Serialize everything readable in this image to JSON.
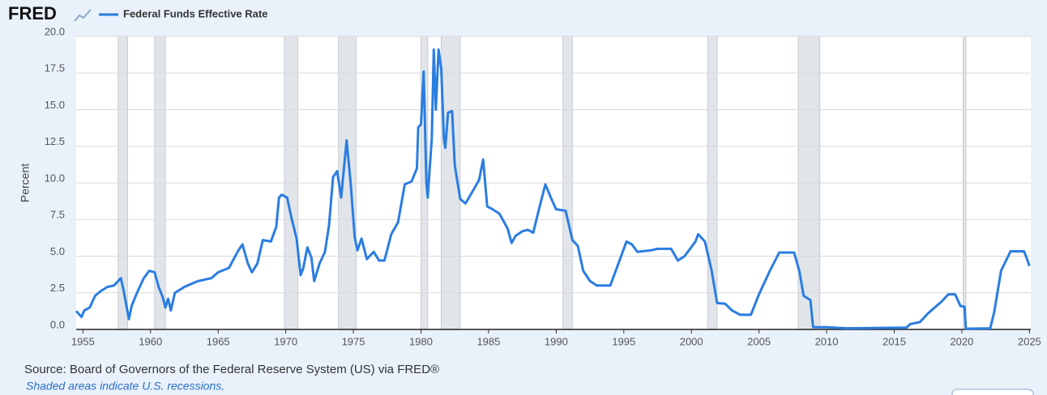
{
  "chart_data": {
    "type": "line",
    "logo": "FRED",
    "ylabel": "Percent",
    "source": "Source: Board of Governors of the Federal Reserve System (US) via FRED®",
    "note": "Shaded areas indicate U.S. recessions.",
    "xlim": [
      1954.5,
      2025.1
    ],
    "xticks": [
      1955,
      1960,
      1965,
      1970,
      1975,
      1980,
      1985,
      1990,
      1995,
      2000,
      2005,
      2010,
      2015,
      2020,
      2025
    ],
    "ylim": [
      0,
      20
    ],
    "yticks": [
      {
        "value": 0,
        "label": "0.0"
      },
      2.5,
      {
        "value": 5,
        "label": "5.0"
      },
      7.5,
      {
        "value": 10,
        "label": "10.0"
      },
      12.5,
      {
        "value": 15,
        "label": "15.0"
      },
      17.5,
      {
        "value": 20,
        "label": "20.0"
      }
    ],
    "grid": true,
    "recessions": [
      [
        1957.6,
        1958.3
      ],
      [
        1960.3,
        1961.1
      ],
      [
        1969.9,
        1970.9
      ],
      [
        1973.9,
        1975.2
      ],
      [
        1980.0,
        1980.5
      ],
      [
        1981.5,
        1982.9
      ],
      [
        1990.5,
        1991.2
      ],
      [
        2001.2,
        2001.9
      ],
      [
        2007.9,
        2009.5
      ],
      [
        2020.1,
        2020.3
      ]
    ],
    "x": [
      1954.5,
      1954.9,
      1955.1,
      1955.5,
      1955.9,
      1956.3,
      1956.8,
      1957.3,
      1957.8,
      1958.0,
      1958.3,
      1958.4,
      1958.6,
      1959.0,
      1959.5,
      1959.9,
      1960.3,
      1960.6,
      1960.9,
      1961.1,
      1961.3,
      1961.5,
      1961.8,
      1962.5,
      1963.5,
      1964.5,
      1965.0,
      1965.8,
      1966.5,
      1966.8,
      1967.2,
      1967.5,
      1967.9,
      1968.3,
      1968.9,
      1969.3,
      1969.5,
      1969.7,
      1970.1,
      1970.4,
      1970.8,
      1971.1,
      1971.3,
      1971.6,
      1971.9,
      1972.1,
      1972.5,
      1972.9,
      1973.2,
      1973.5,
      1973.8,
      1974.1,
      1974.5,
      1974.8,
      1975.1,
      1975.3,
      1975.6,
      1976.0,
      1976.5,
      1976.9,
      1977.3,
      1977.8,
      1978.3,
      1978.8,
      1979.3,
      1979.7,
      1979.8,
      1980.0,
      1980.2,
      1980.4,
      1980.5,
      1980.8,
      1980.95,
      1981.1,
      1981.3,
      1981.5,
      1981.7,
      1981.8,
      1982.0,
      1982.3,
      1982.5,
      1982.9,
      1983.3,
      1983.8,
      1984.3,
      1984.6,
      1984.9,
      1985.3,
      1985.8,
      1986.4,
      1986.7,
      1987.0,
      1987.5,
      1987.9,
      1988.3,
      1988.7,
      1989.2,
      1989.6,
      1990.0,
      1990.7,
      1991.2,
      1991.6,
      1992.0,
      1992.5,
      1993.0,
      1994.0,
      1994.6,
      1995.2,
      1995.6,
      1996.0,
      1997.0,
      1997.5,
      1998.5,
      1999.0,
      1999.5,
      2000.3,
      2000.5,
      2001.0,
      2001.5,
      2001.9,
      2002.5,
      2003.0,
      2003.6,
      2004.4,
      2005.0,
      2005.8,
      2006.5,
      2007.6,
      2008.0,
      2008.3,
      2008.8,
      2009.0,
      2010.0,
      2011.5,
      2015.9,
      2016.2,
      2016.9,
      2017.5,
      2018.5,
      2019.0,
      2019.5,
      2019.9,
      2020.2,
      2020.3,
      2022.1,
      2022.4,
      2022.9,
      2023.6,
      2024.6,
      2024.9,
      2025.0
    ],
    "series": [
      {
        "name": "Federal Funds Effective Rate",
        "color": "#2a7de1",
        "values": [
          1.25,
          0.85,
          1.3,
          1.5,
          2.3,
          2.6,
          2.9,
          3.0,
          3.5,
          2.7,
          1.2,
          0.7,
          1.6,
          2.5,
          3.5,
          4.0,
          3.9,
          2.9,
          2.2,
          1.5,
          2.1,
          1.3,
          2.5,
          2.9,
          3.3,
          3.5,
          3.9,
          4.2,
          5.4,
          5.8,
          4.5,
          3.9,
          4.5,
          6.1,
          6.0,
          7.0,
          9.0,
          9.2,
          9.0,
          7.7,
          6.2,
          3.7,
          4.2,
          5.6,
          4.9,
          3.3,
          4.5,
          5.3,
          7.1,
          10.4,
          10.8,
          9.0,
          12.9,
          10.0,
          6.3,
          5.4,
          6.2,
          4.8,
          5.3,
          4.7,
          4.7,
          6.5,
          7.3,
          9.9,
          10.1,
          11.0,
          13.8,
          14.0,
          17.6,
          10.0,
          9.0,
          13.0,
          19.1,
          15.0,
          19.1,
          17.8,
          13.0,
          12.4,
          14.8,
          14.9,
          11.2,
          8.9,
          8.6,
          9.4,
          10.2,
          11.6,
          8.4,
          8.2,
          7.9,
          6.9,
          5.9,
          6.4,
          6.7,
          6.8,
          6.6,
          8.1,
          9.9,
          9.0,
          8.2,
          8.1,
          6.1,
          5.7,
          4.0,
          3.3,
          3.0,
          3.0,
          4.5,
          6.0,
          5.8,
          5.3,
          5.4,
          5.5,
          5.5,
          4.7,
          5.0,
          6.0,
          6.5,
          6.0,
          4.0,
          1.8,
          1.75,
          1.3,
          1.0,
          1.0,
          2.4,
          4.0,
          5.25,
          5.25,
          3.9,
          2.3,
          2.0,
          0.16,
          0.15,
          0.08,
          0.12,
          0.37,
          0.5,
          1.1,
          1.9,
          2.4,
          2.4,
          1.6,
          1.55,
          0.05,
          0.08,
          1.2,
          4.0,
          5.33,
          5.33,
          4.6,
          4.33
        ]
      }
    ]
  }
}
